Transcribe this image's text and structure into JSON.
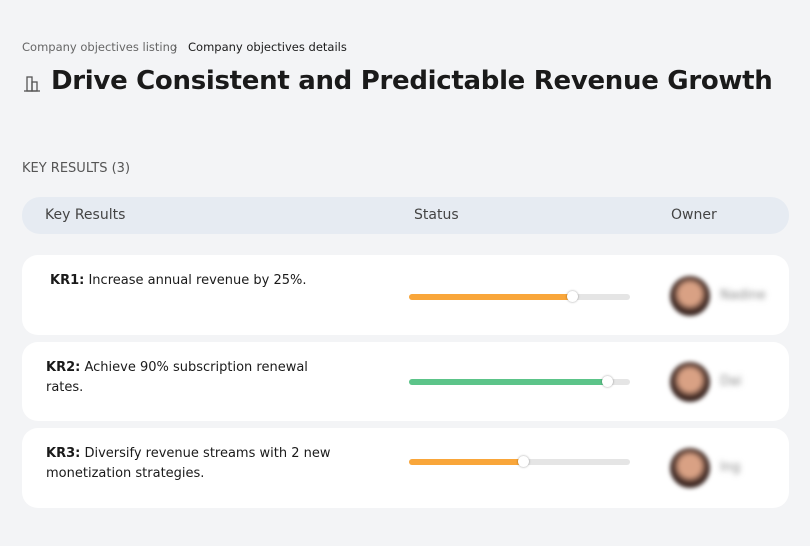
{
  "breadcrumb": [
    "Company objectives listing",
    "Company objectives details"
  ],
  "title": "Drive Consistent and Predictable Revenue Growth",
  "section_title": "KEY RESULTS (3)",
  "table": {
    "columns": [
      "Key Results",
      "Status",
      "Owner"
    ],
    "rows": [
      {
        "label": "KR1:",
        "text": "Increase annual revenue by 25%.",
        "progress": 74,
        "color": "#f9a63a",
        "owner": "Nadine"
      },
      {
        "label": "KR2:",
        "text": "Achieve 90% subscription renewal rates.",
        "progress": 90,
        "color": "#5cc489",
        "owner": "Dai"
      },
      {
        "label": "KR3:",
        "text": "Diversify revenue streams with 2 new monetization strategies.",
        "progress": 52,
        "color": "#f9a63a",
        "owner": "Ing"
      }
    ]
  }
}
